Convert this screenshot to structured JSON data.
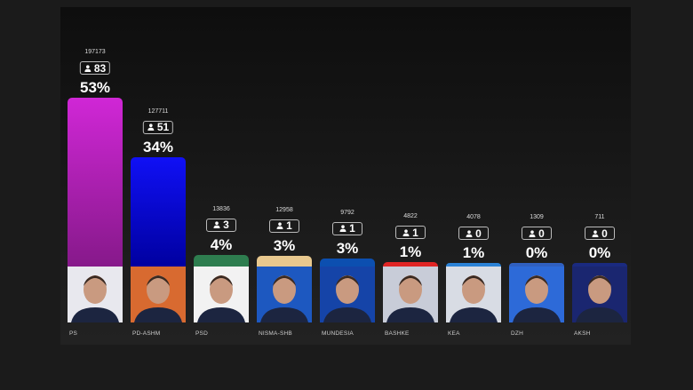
{
  "chart_data": {
    "type": "bar",
    "title": "",
    "xlabel": "",
    "ylabel": "",
    "categories": [
      "PS",
      "PD-ASHM",
      "PSD",
      "NISMA-SHB",
      "MUNDESIA",
      "BASHKE",
      "KEA",
      "DZH",
      "AKSH"
    ],
    "votes": [
      197173,
      127711,
      13836,
      12958,
      9792,
      4822,
      4078,
      1309,
      711
    ],
    "seats": [
      "83",
      "51",
      "3",
      "1",
      "1",
      "1",
      "0",
      "0",
      "0"
    ],
    "percent_labels": [
      "53%",
      "34%",
      "4%",
      "3%",
      "3%",
      "1%",
      "1%",
      "0%",
      "0%"
    ],
    "values": [
      53,
      34,
      4,
      3,
      3,
      1,
      1,
      0,
      0
    ],
    "colors": [
      [
        "#d027d6",
        "#86198a"
      ],
      [
        "#1010f5",
        "#0000a0"
      ],
      [
        "#2e7d4f",
        "#2e7d4f"
      ],
      [
        "#e8c88e",
        "#e8c88e"
      ],
      [
        "#0c4fb0",
        "#0c4fb0"
      ],
      [
        "#e02424",
        "#e02424"
      ],
      [
        "#2b82d6",
        "#2b82d6"
      ],
      [
        "#3060c0",
        "#3060c0"
      ],
      [
        "#1a2a80",
        "#1a2a80"
      ]
    ],
    "photo_backgrounds": [
      "#e8e8ee",
      "#d86a30",
      "#f2f2f2",
      "#1d58c0",
      "#1544a8",
      "#c8ccd8",
      "#d8dce4",
      "#2d6ad8",
      "#1a2670"
    ],
    "seat_icon": "person-icon"
  }
}
